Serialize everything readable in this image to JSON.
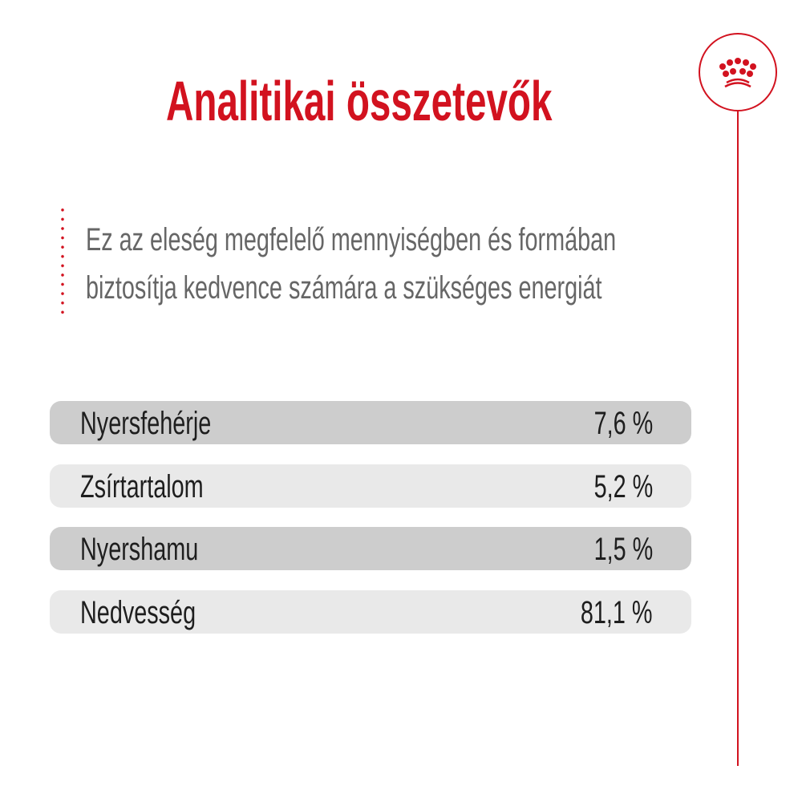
{
  "title": "Analitikai összetevők",
  "description": [
    "Ez az eleség megfelelő mennyiségben és formában",
    "biztosítja kedvence számára a szükséges energiát"
  ],
  "rows": [
    {
      "label": "Nyersfehérje",
      "value": "7,6 %"
    },
    {
      "label": "Zsírtartalom",
      "value": "5,2 %"
    },
    {
      "label": "Nyershamu",
      "value": "1,5 %"
    },
    {
      "label": "Nedvesség",
      "value": "81,1 %"
    }
  ],
  "colors": {
    "accent": "#d2121f",
    "row_dark": "#cdcdcd",
    "row_light": "#e9e9e9"
  },
  "logo": "crown-icon"
}
